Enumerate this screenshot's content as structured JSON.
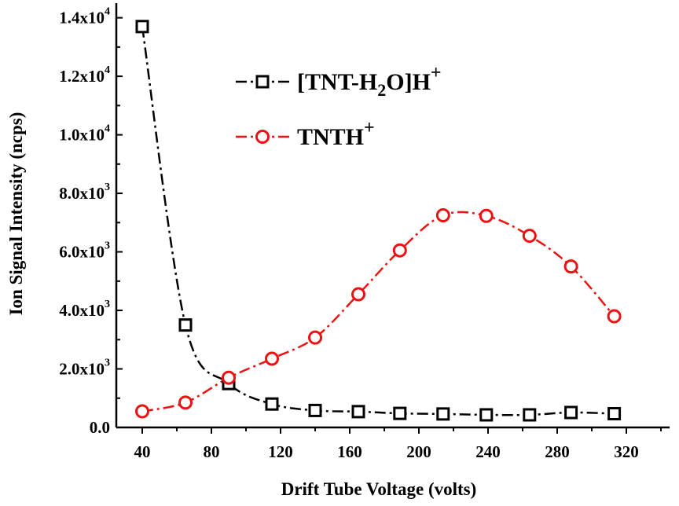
{
  "chart_data": {
    "type": "line",
    "xlabel": "Drift Tube Voltage (volts)",
    "ylabel": "Ion Signal Intensity (ncps)",
    "xlim": [
      25,
      345
    ],
    "ylim": [
      0,
      14500
    ],
    "x_ticks": [
      40,
      80,
      120,
      160,
      200,
      240,
      280,
      320
    ],
    "x_tick_labels": [
      "40",
      "80",
      "120",
      "160",
      "200",
      "240",
      "280",
      "320"
    ],
    "y_ticks": [
      0,
      2000,
      4000,
      6000,
      8000,
      10000,
      12000,
      14000
    ],
    "y_tick_labels": [
      {
        "mantissa": "0.0",
        "exp": ""
      },
      {
        "mantissa": "2.0x10",
        "exp": "3"
      },
      {
        "mantissa": "4.0x10",
        "exp": "3"
      },
      {
        "mantissa": "6.0x10",
        "exp": "3"
      },
      {
        "mantissa": "8.0x10",
        "exp": "3"
      },
      {
        "mantissa": "1.0x10",
        "exp": "4"
      },
      {
        "mantissa": "1.2x10",
        "exp": "4"
      },
      {
        "mantissa": "1.4x10",
        "exp": "4"
      }
    ],
    "grid": false,
    "legend_position": "top-center",
    "series": [
      {
        "name_parts": [
          {
            "text": "[TNT-H",
            "sub": false
          },
          {
            "text": "2",
            "sub": true
          },
          {
            "text": "O]H",
            "sub": false
          },
          {
            "text": "+",
            "sup": true
          }
        ],
        "marker": "square",
        "color": "#000000",
        "x": [
          40,
          65,
          90,
          115,
          140,
          165,
          189,
          214,
          239,
          264,
          288,
          313
        ],
        "y": [
          13700,
          3500,
          1500,
          800,
          580,
          540,
          480,
          460,
          430,
          430,
          510,
          470
        ]
      },
      {
        "name_parts": [
          {
            "text": "TNTH",
            "sub": false
          },
          {
            "text": "+",
            "sup": true
          }
        ],
        "marker": "circle",
        "color": "#ee1111",
        "x": [
          40,
          65,
          90,
          115,
          140,
          165,
          189,
          214,
          239,
          264,
          288,
          313
        ],
        "y": [
          550,
          850,
          1700,
          2350,
          3070,
          4550,
          6050,
          7250,
          7230,
          6550,
          5500,
          3800
        ]
      }
    ]
  }
}
